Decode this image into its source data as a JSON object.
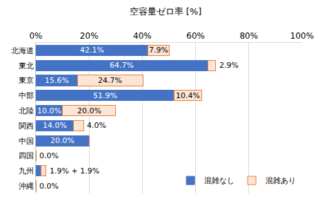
{
  "chart_data": {
    "type": "bar",
    "orientation": "horizontal",
    "stacked": true,
    "title": "空容量ゼロ率 [%]",
    "categories": [
      "北海道",
      "東北",
      "東京",
      "中部",
      "北陸",
      "関西",
      "中国",
      "四国",
      "九州",
      "沖縄"
    ],
    "series": [
      {
        "name": "混雑なし",
        "color": "#4472c4",
        "values": [
          42.1,
          64.7,
          15.6,
          51.9,
          10.0,
          14.0,
          20.0,
          0.0,
          1.9,
          0.0
        ],
        "value_labels": [
          "42.1%",
          "64.7%",
          "15.6%",
          "51.9%",
          "10.0%",
          "14.0%",
          "20.0%",
          "0.0%",
          null,
          "0.0%"
        ]
      },
      {
        "name": "混雑あり",
        "color": "#fbe5d6",
        "values": [
          7.9,
          2.9,
          24.7,
          10.4,
          20.0,
          4.0,
          0,
          0,
          1.9,
          0
        ],
        "value_labels": [
          "7.9%",
          "2.9%",
          "24.7%",
          "10.4%",
          "20.0%",
          "4.0%",
          null,
          null,
          null,
          null
        ]
      }
    ],
    "annotations": [
      {
        "category": "九州",
        "text": "1.9% + 1.9%"
      }
    ],
    "data_labels": true,
    "xlim": [
      0,
      100
    ],
    "xticks": [
      {
        "value": 0,
        "label": "0%"
      },
      {
        "value": 20,
        "label": "20%"
      },
      {
        "value": 40,
        "label": "40%"
      },
      {
        "value": 60,
        "label": "60%"
      },
      {
        "value": 80,
        "label": "80%"
      },
      {
        "value": 100,
        "label": "100%"
      }
    ],
    "grid": true,
    "legend": "bottom right"
  }
}
